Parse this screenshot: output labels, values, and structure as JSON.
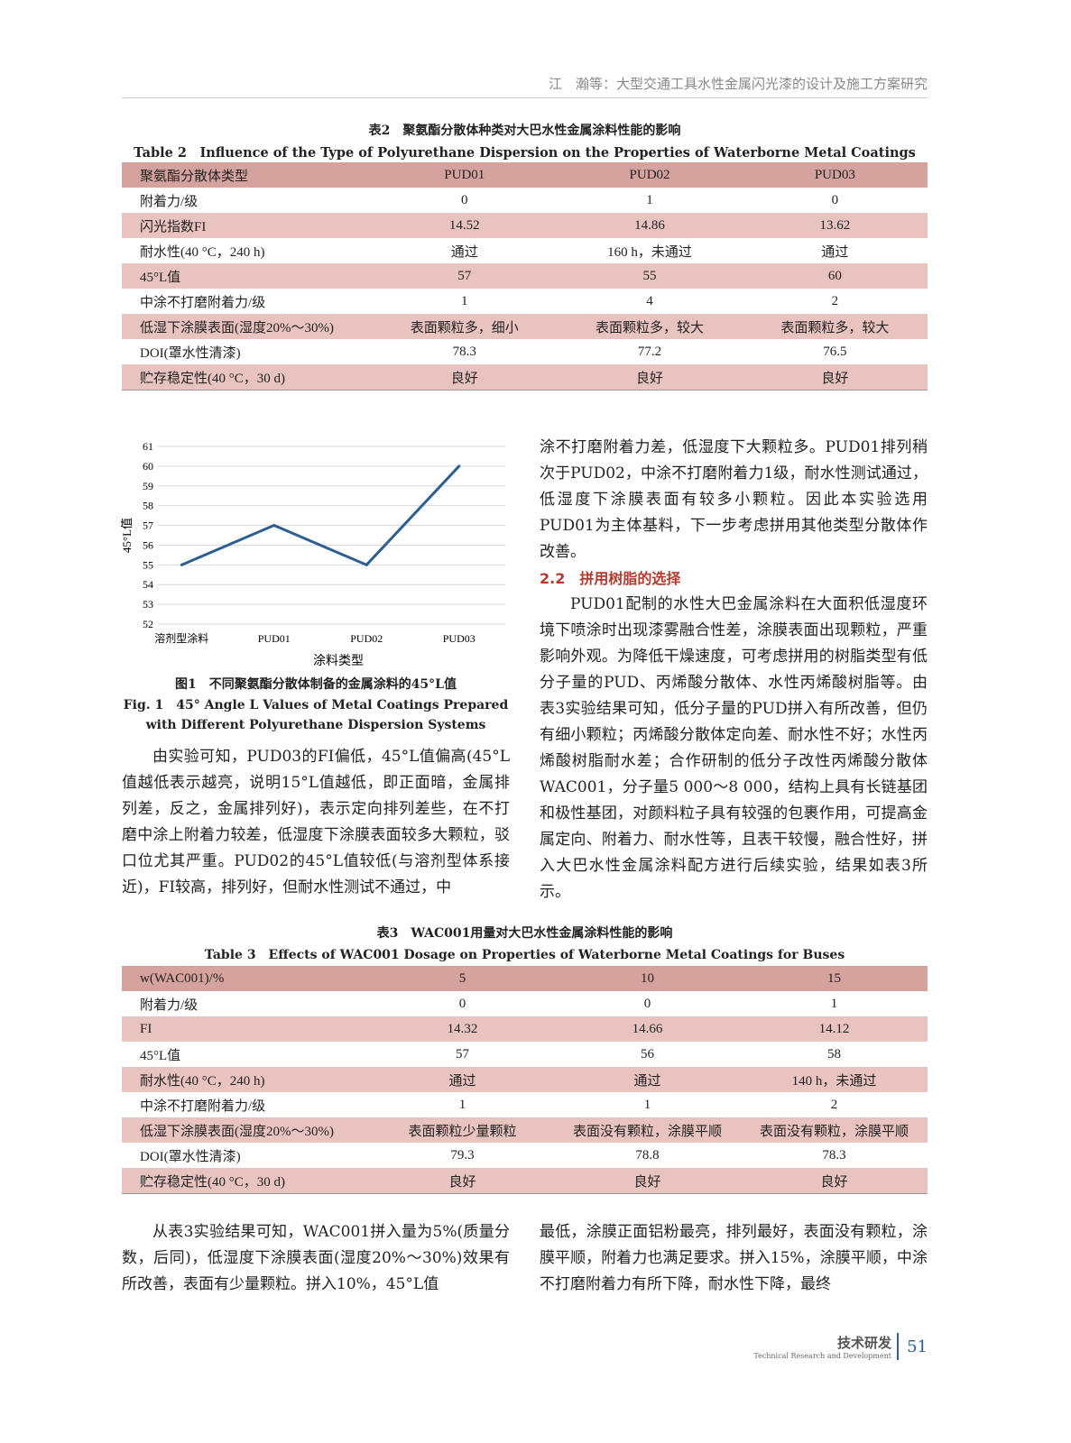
{
  "header": {
    "running_title": "江　瀚等：大型交通工具水性金属闪光漆的设计及施工方案研究"
  },
  "table2": {
    "caption_cn": "表2　聚氨酯分散体种类对大巴水性金属涂料性能的影响",
    "caption_en": "Table 2　Influence of the Type of Polyurethane Dispersion on the Properties of Waterborne Metal Coatings for Buses",
    "header": [
      "聚氨酯分散体类型",
      "PUD01",
      "PUD02",
      "PUD03"
    ],
    "rows": [
      [
        "附着力/级",
        "0",
        "1",
        "0"
      ],
      [
        "闪光指数FI",
        "14.52",
        "14.86",
        "13.62"
      ],
      [
        "耐水性(40 °C，240 h)",
        "通过",
        "160 h，未通过",
        "通过"
      ],
      [
        "45°L值",
        "57",
        "55",
        "60"
      ],
      [
        "中涂不打磨附着力/级",
        "1",
        "4",
        "2"
      ],
      [
        "低湿下涂膜表面(湿度20%～30%)",
        "表面颗粒多，细小",
        "表面颗粒多，较大",
        "表面颗粒多，较大"
      ],
      [
        "DOI(罩水性清漆)",
        "78.3",
        "77.2",
        "76.5"
      ],
      [
        "贮存稳定性(40 °C，30 d)",
        "良好",
        "良好",
        "良好"
      ]
    ]
  },
  "chart_data": {
    "type": "line",
    "categories": [
      "溶剂型涂料",
      "PUD01",
      "PUD02",
      "PUD03"
    ],
    "values": [
      55,
      57,
      55,
      60
    ],
    "xlabel": "涂料类型",
    "ylabel": "45°L值",
    "ylim": [
      52,
      61
    ],
    "yticks": [
      52,
      53,
      54,
      55,
      56,
      57,
      58,
      59,
      60,
      61
    ],
    "grid": true,
    "color": "#2e5f8e"
  },
  "figure1": {
    "caption_cn": "图1　不同聚氨酯分散体制备的金属涂料的45°L值",
    "caption_en_1": "Fig. 1　45° Angle L Values of Metal Coatings Prepared",
    "caption_en_2": "with Different Polyurethane Dispersion Systems"
  },
  "left_text": "由实验可知，PUD03的FI偏低，45°L值偏高(45°L值越低表示越亮，说明15°L值越低，即正面暗，金属排列差，反之，金属排列好)，表示定向排列差些，在不打磨中涂上附着力较差，低湿度下涂膜表面较多大颗粒，驳口位尤其严重。PUD02的45°L值较低(与溶剂型体系接近)，FI较高，排列好，但耐水性测试不通过，中",
  "right_text_1": "涂不打磨附着力差，低湿度下大颗粒多。PUD01排列稍次于PUD02，中涂不打磨附着力1级，耐水性测试通过，低湿度下涂膜表面有较多小颗粒。因此本实验选用PUD01为主体基料，下一步考虑拼用其他类型分散体作改善。",
  "section_heading": "2.2　拼用树脂的选择",
  "right_text_2": "PUD01配制的水性大巴金属涂料在大面积低湿度环境下喷涂时出现漆雾融合性差，涂膜表面出现颗粒，严重影响外观。为降低干燥速度，可考虑拼用的树脂类型有低分子量的PUD、丙烯酸分散体、水性丙烯酸树脂等。由表3实验结果可知，低分子量的PUD拼入有所改善，但仍有细小颗粒；丙烯酸分散体定向差、耐水性不好；水性丙烯酸树脂耐水差；合作研制的低分子改性丙烯酸分散体WAC001，分子量5 000～8 000，结构上具有长链基团和极性基团，对颜料粒子具有较强的包裹作用，可提高金属定向、附着力、耐水性等，且表干较慢，融合性好，拼入大巴水性金属涂料配方进行后续实验，结果如表3所示。",
  "table3": {
    "caption_cn": "表3　WAC001用量对大巴水性金属涂料性能的影响",
    "caption_en": "Table 3　Effects of WAC001 Dosage on Properties of Waterborne Metal Coatings for Buses",
    "header": [
      "w(WAC001)/%",
      "5",
      "10",
      "15"
    ],
    "rows": [
      [
        "附着力/级",
        "0",
        "0",
        "1"
      ],
      [
        "FI",
        "14.32",
        "14.66",
        "14.12"
      ],
      [
        "45°L值",
        "57",
        "56",
        "58"
      ],
      [
        "耐水性(40 °C，240 h)",
        "通过",
        "通过",
        "140 h，未通过"
      ],
      [
        "中涂不打磨附着力/级",
        "1",
        "1",
        "2"
      ],
      [
        "低湿下涂膜表面(湿度20%～30%)",
        "表面颗粒少量颗粒",
        "表面没有颗粒，涂膜平顺",
        "表面没有颗粒，涂膜平顺"
      ],
      [
        "DOI(罩水性清漆)",
        "79.3",
        "78.8",
        "78.3"
      ],
      [
        "贮存稳定性(40 °C，30 d)",
        "良好",
        "良好",
        "良好"
      ]
    ]
  },
  "bottom_left": "从表3实验结果可知，WAC001拼入量为5%(质量分数，后同)，低湿度下涂膜表面(湿度20%～30%)效果有所改善，表面有少量颗粒。拼入10%，45°L值",
  "bottom_right": "最低，涂膜正面铝粉最亮，排列最好，表面没有颗粒，涂膜平顺，附着力也满足要求。拼入15%，涂膜平顺，中涂不打磨附着力有所下降，耐水性下降，最终",
  "footer": {
    "section_cn": "技术研发",
    "section_en": "Technical Research and Development",
    "page_number": "51"
  }
}
